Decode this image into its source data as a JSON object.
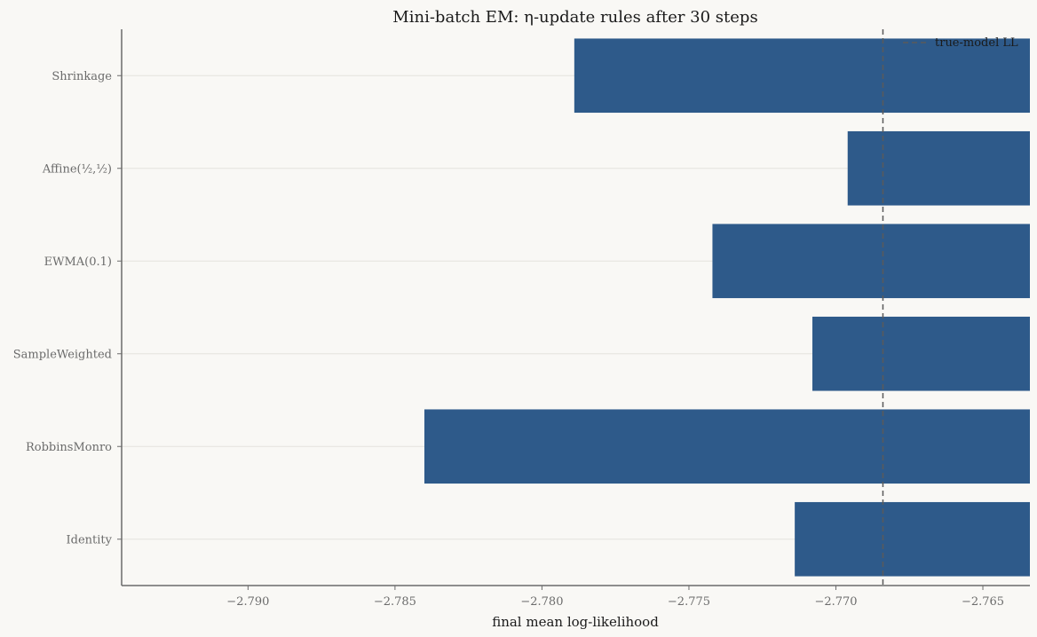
{
  "chart_data": {
    "type": "bar",
    "orientation": "horizontal",
    "title": "Mini-batch EM: η-update rules after 30 steps",
    "xlabel": "final mean log-likelihood",
    "ylabel": "",
    "categories": [
      "Identity",
      "RobbinsMonro",
      "SampleWeighted",
      "EWMA(0.1)",
      "Affine(½,½)",
      "Shrinkage"
    ],
    "values": [
      -2.7714,
      -2.784,
      -2.7708,
      -2.7742,
      -2.7696,
      -2.7789
    ],
    "xlim": [
      -2.7943,
      -2.7634
    ],
    "xticks": [
      -2.79,
      -2.785,
      -2.78,
      -2.775,
      -2.77,
      -2.765
    ],
    "xtick_labels": [
      "−2.790",
      "−2.785",
      "−2.780",
      "−2.775",
      "−2.770",
      "−2.765"
    ],
    "reference_line": {
      "label": "true-model LL",
      "value": -2.7684,
      "style": "dashed"
    },
    "legend": {
      "entries": [
        "true-model LL"
      ],
      "placement": "top-right"
    },
    "grid": {
      "x": false,
      "y": true
    },
    "colors": {
      "bar": "#2e5a8a",
      "reference": "#5a5a5a",
      "axis": "#6b6b6b",
      "grid": "#e4e2dd",
      "background": "#f9f8f5"
    }
  }
}
